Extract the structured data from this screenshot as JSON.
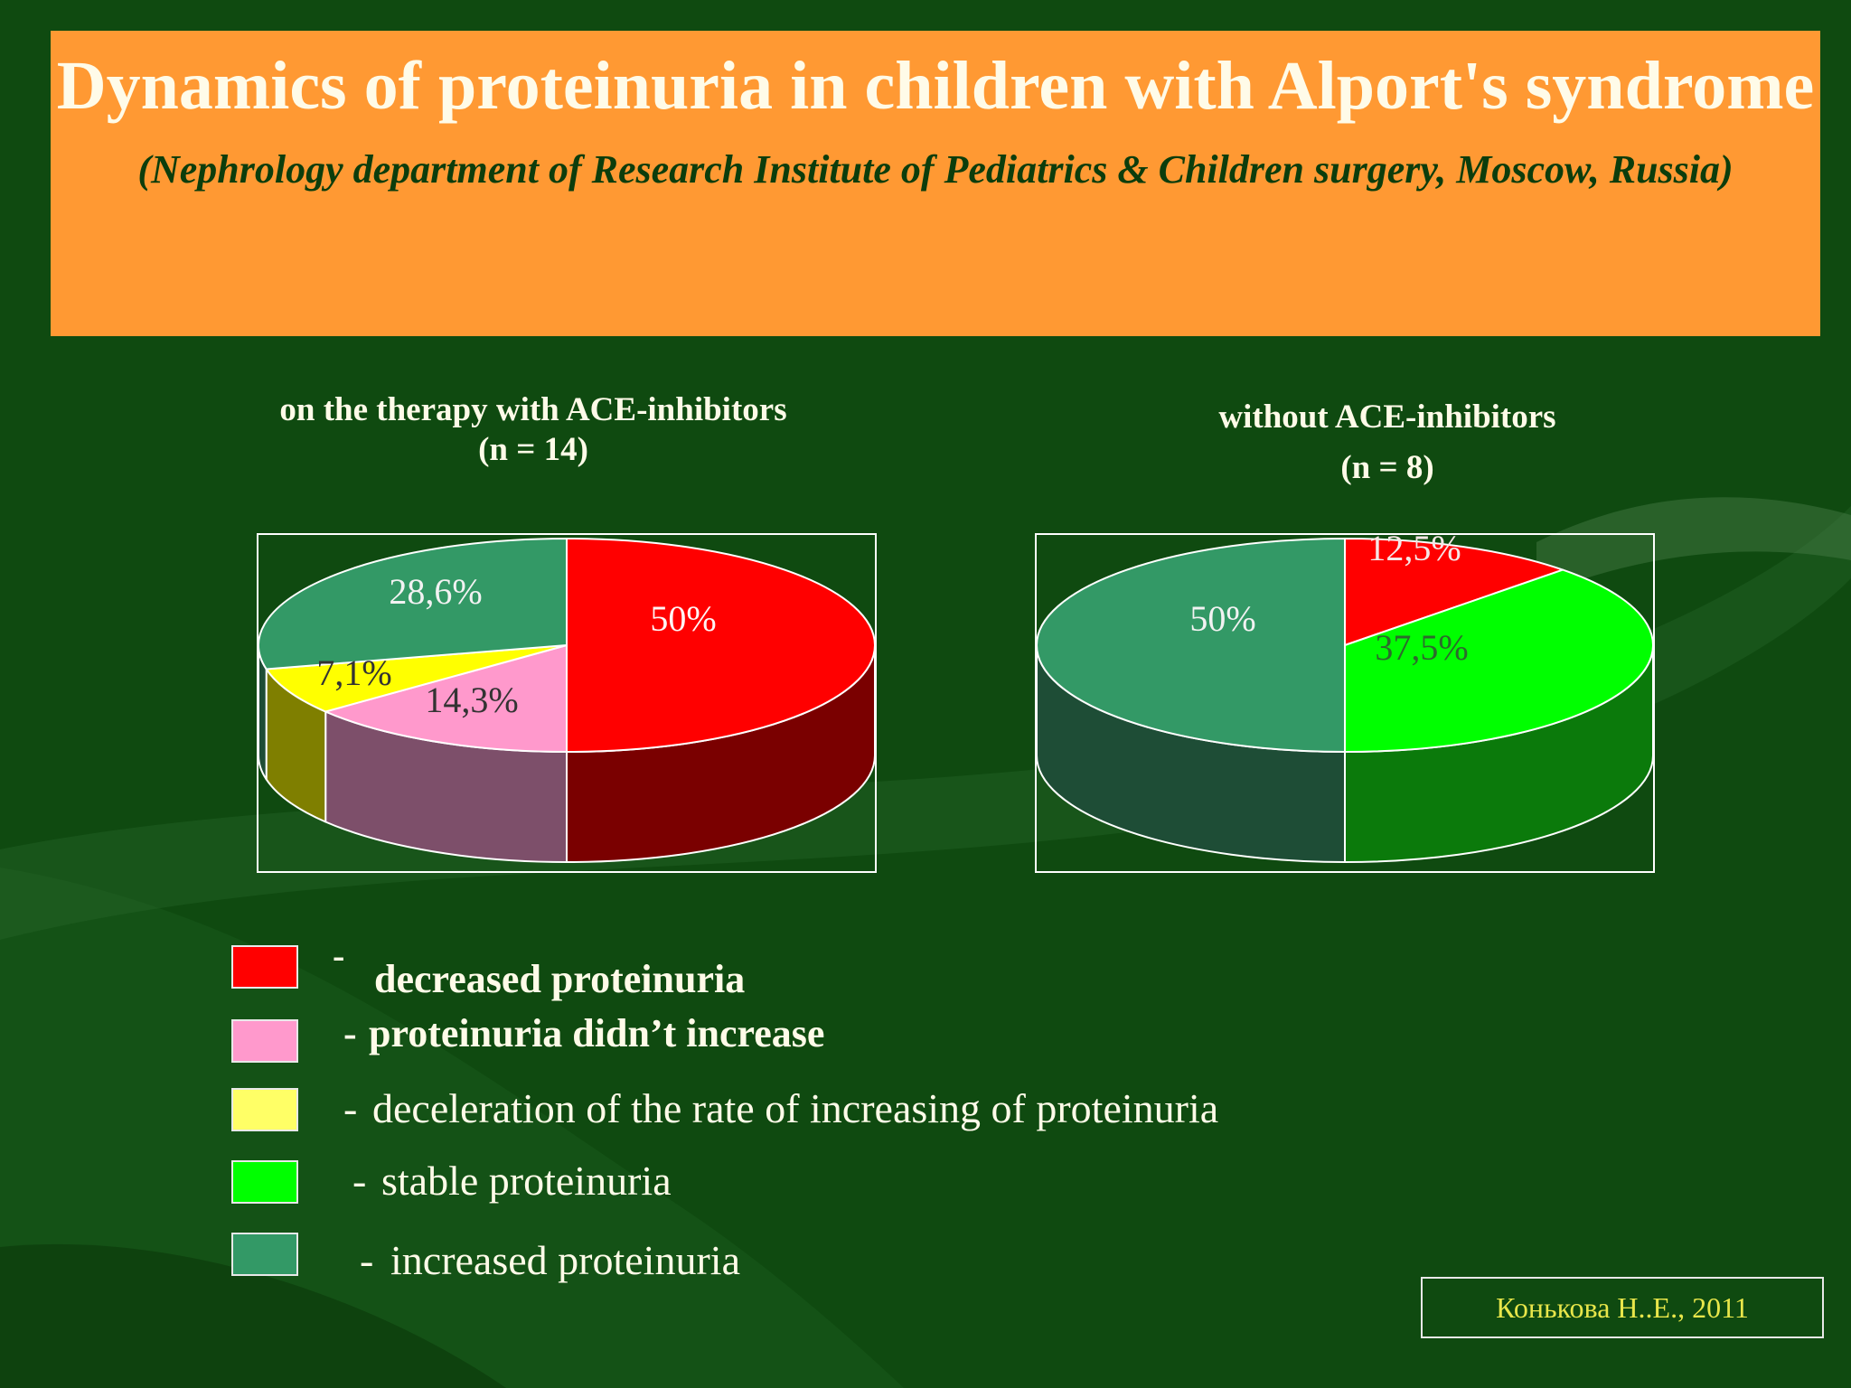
{
  "slide": {
    "title": "Dynamics of proteinuria in children with Alport's syndrome",
    "subtitle": "(Nephrology department of Research Institute of Pediatrics & Children surgery, Moscow,  Russia)",
    "credit": "Конькова Н..Е., 2011"
  },
  "colors": {
    "background": "#0f4a10",
    "banner": "#ff9933",
    "decreased": "#ff0000",
    "didnt_increase": "#ff99cc",
    "deceleration": "#ffff00",
    "stable": "#00ff00",
    "increased": "#339966"
  },
  "chart_data": [
    {
      "type": "pie",
      "title": "on  the  therapy with ACE-inhibitors",
      "subtitle": "(n = 14)",
      "style": "3d",
      "slices": [
        {
          "category": "decreased proteinuria",
          "value": 50,
          "label": "50%",
          "color": "#ff0000",
          "side_color": "#7a0000"
        },
        {
          "category": "proteinuria didn't increase",
          "value": 14.3,
          "label": "14,3%",
          "color": "#ff99cc",
          "side_color": "#7d4f6a"
        },
        {
          "category": "deceleration of the rate of increasing of proteinuria",
          "value": 7.1,
          "label": "7,1%",
          "color": "#ffff00",
          "side_color": "#7f7f00"
        },
        {
          "category": "increased proteinuria",
          "value": 28.6,
          "label": "28,6%",
          "color": "#339966",
          "side_color": "#1e4d36"
        }
      ]
    },
    {
      "type": "pie",
      "title": "without ACE-inhibitors",
      "subtitle": "(n = 8)",
      "style": "3d",
      "slices": [
        {
          "category": "decreased proteinuria",
          "value": 12.5,
          "label": "12,5%",
          "color": "#ff0000",
          "side_color": "#7a0000"
        },
        {
          "category": "stable proteinuria",
          "value": 37.5,
          "label": "37,5%",
          "color": "#00ff00",
          "side_color": "#0b7a0b"
        },
        {
          "category": "increased proteinuria",
          "value": 50,
          "label": "50%",
          "color": "#339966",
          "side_color": "#1e4d36"
        }
      ]
    }
  ],
  "legend": [
    {
      "label": "decreased  proteinuria",
      "color": "#ff0000"
    },
    {
      "label": "proteinuria didn’t increase",
      "color": "#ff99cc"
    },
    {
      "label": "deceleration of the rate of increasing of proteinuria",
      "color": "#ffff66"
    },
    {
      "label": "stable proteinuria",
      "color": "#00ff00"
    },
    {
      "label": "increased proteinuria",
      "color": "#339966"
    }
  ]
}
